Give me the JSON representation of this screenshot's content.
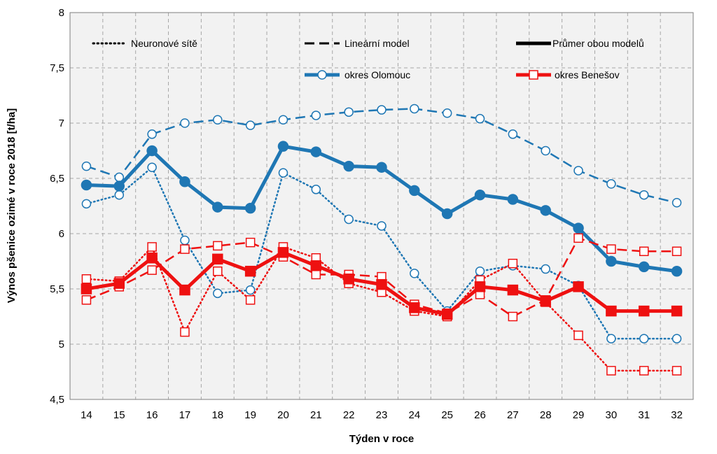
{
  "chart_data": {
    "type": "line",
    "title": "",
    "xlabel": "Týden v roce",
    "ylabel": "Výnos pšenice ozimé v roce 2018 [t/ha]",
    "ylim": [
      4.5,
      8
    ],
    "y_ticks": [
      4.5,
      5,
      5.5,
      6,
      6.5,
      7,
      7.5,
      8
    ],
    "y_tick_labels": [
      "4,5",
      "5",
      "5,5",
      "6",
      "6,5",
      "7",
      "7,5",
      "8"
    ],
    "categories": [
      "14",
      "15",
      "16",
      "17",
      "18",
      "19",
      "20",
      "21",
      "22",
      "23",
      "24",
      "25",
      "26",
      "27",
      "28",
      "29",
      "30",
      "31",
      "32"
    ],
    "grid": true,
    "colors": {
      "olomouc": "#1f77b4",
      "benesov": "#ee1111",
      "plot_bg": "#f2f2f2",
      "grid": "#a6a6a6"
    },
    "legend": [
      {
        "label": "Neuronové sítě",
        "style": "dotted",
        "color": "#000000"
      },
      {
        "label": "Lineární model",
        "style": "dashed",
        "color": "#000000"
      },
      {
        "label": "Průmer obou modelů",
        "style": "solid",
        "color": "#000000"
      },
      {
        "label": "okres Olomouc",
        "style": "solid",
        "marker": "circle",
        "color": "#1f77b4"
      },
      {
        "label": "okres Benešov",
        "style": "solid",
        "marker": "square",
        "color": "#ee1111"
      }
    ],
    "series": [
      {
        "name": "okres Olomouc – Lineární model",
        "district": "olomouc",
        "model": "linear",
        "values": [
          6.61,
          6.51,
          6.9,
          7.0,
          7.03,
          6.98,
          7.03,
          7.07,
          7.1,
          7.12,
          7.13,
          7.09,
          7.04,
          6.9,
          6.75,
          6.57,
          6.45,
          6.35,
          6.28
        ]
      },
      {
        "name": "okres Olomouc – Neuronové sítě",
        "district": "olomouc",
        "model": "nn",
        "values": [
          6.27,
          6.35,
          6.6,
          5.94,
          5.46,
          5.49,
          6.55,
          6.4,
          6.13,
          6.07,
          5.64,
          5.3,
          5.66,
          5.71,
          5.68,
          5.53,
          5.05,
          5.05,
          5.05
        ]
      },
      {
        "name": "okres Olomouc – Průmer obou modelů",
        "district": "olomouc",
        "model": "avg",
        "values": [
          6.44,
          6.43,
          6.75,
          6.47,
          6.24,
          6.23,
          6.79,
          6.74,
          6.61,
          6.6,
          6.39,
          6.18,
          6.35,
          6.31,
          6.21,
          6.05,
          5.75,
          5.7,
          5.66
        ]
      },
      {
        "name": "okres Benešov – Lineární model",
        "district": "benesov",
        "model": "linear",
        "values": [
          5.4,
          5.52,
          5.67,
          5.86,
          5.89,
          5.92,
          5.79,
          5.63,
          5.63,
          5.61,
          5.36,
          5.28,
          5.45,
          5.25,
          5.4,
          5.96,
          5.86,
          5.84,
          5.84
        ]
      },
      {
        "name": "okres Benešov – Neuronové sítě",
        "district": "benesov",
        "model": "nn",
        "values": [
          5.59,
          5.57,
          5.88,
          5.11,
          5.66,
          5.4,
          5.88,
          5.78,
          5.55,
          5.47,
          5.3,
          5.25,
          5.58,
          5.73,
          5.38,
          5.08,
          4.76,
          4.76,
          4.76
        ]
      },
      {
        "name": "okres Benešov – Průmer obou modelů",
        "district": "benesov",
        "model": "avg",
        "values": [
          5.5,
          5.55,
          5.78,
          5.49,
          5.77,
          5.66,
          5.83,
          5.71,
          5.59,
          5.54,
          5.33,
          5.27,
          5.52,
          5.49,
          5.39,
          5.52,
          5.3,
          5.3,
          5.3
        ]
      }
    ]
  }
}
